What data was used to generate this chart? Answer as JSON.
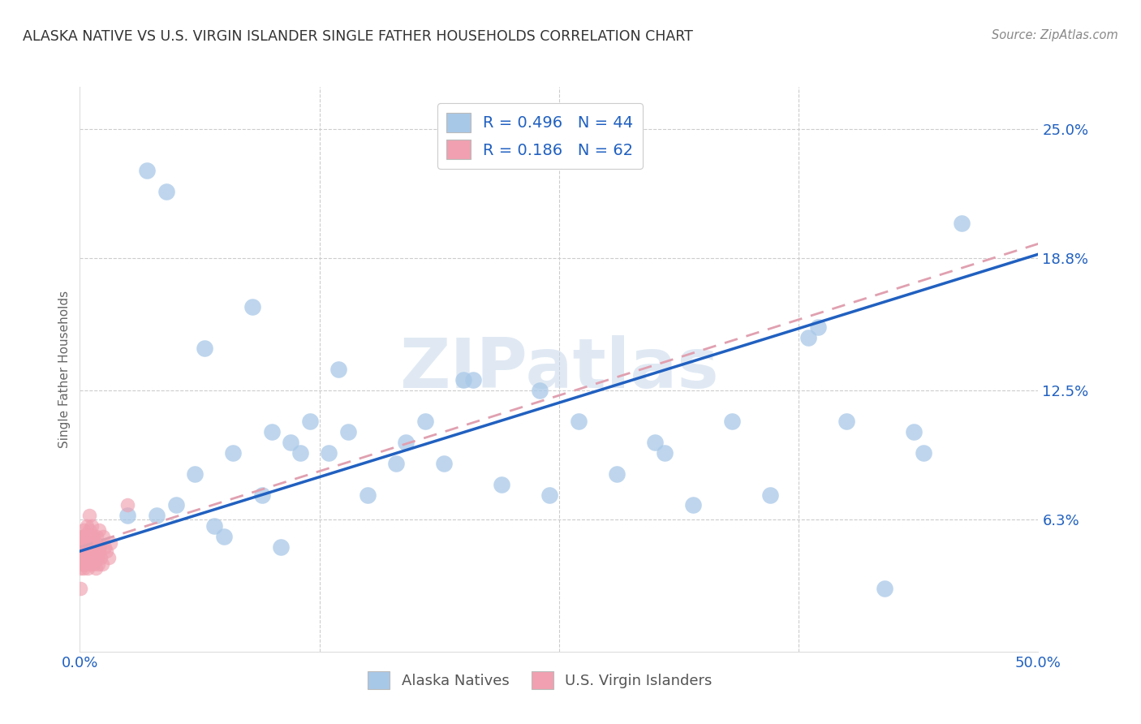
{
  "title": "ALASKA NATIVE VS U.S. VIRGIN ISLANDER SINGLE FATHER HOUSEHOLDS CORRELATION CHART",
  "source": "Source: ZipAtlas.com",
  "ylabel_label": "Single Father Households",
  "ylabel_ticks": [
    "6.3%",
    "12.5%",
    "18.8%",
    "25.0%"
  ],
  "ylabel_values": [
    6.3,
    12.5,
    18.8,
    25.0
  ],
  "xmin": 0.0,
  "xmax": 50.0,
  "ymin": 0.0,
  "ymax": 27.0,
  "color_blue": "#a8c8e8",
  "color_pink": "#f0a0b0",
  "line_blue": "#2060c0",
  "line_pink_dashed": "#e0a0b0",
  "watermark_color": "#c8d8ea",
  "alaska_scatter_x": [
    2.5,
    4.0,
    5.0,
    6.0,
    7.0,
    8.0,
    9.5,
    10.0,
    11.0,
    11.5,
    12.0,
    13.0,
    14.0,
    15.0,
    16.5,
    17.0,
    18.0,
    19.0,
    20.0,
    22.0,
    24.0,
    26.0,
    28.0,
    30.0,
    32.0,
    34.0,
    36.0,
    38.0,
    40.0,
    42.0,
    44.0,
    6.5,
    9.0,
    13.5,
    3.5,
    4.5,
    7.5,
    10.5,
    20.5,
    24.5,
    30.5,
    38.5,
    43.5,
    46.0
  ],
  "alaska_scatter_y": [
    6.5,
    6.5,
    7.0,
    8.5,
    6.0,
    9.5,
    7.5,
    10.5,
    10.0,
    9.5,
    11.0,
    9.5,
    10.5,
    7.5,
    9.0,
    10.0,
    11.0,
    9.0,
    13.0,
    8.0,
    12.5,
    11.0,
    8.5,
    10.0,
    7.0,
    11.0,
    7.5,
    15.0,
    11.0,
    3.0,
    9.5,
    14.5,
    16.5,
    13.5,
    23.0,
    22.0,
    5.5,
    5.0,
    13.0,
    7.5,
    9.5,
    15.5,
    10.5,
    20.5
  ],
  "virgin_scatter_x": [
    0.05,
    0.08,
    0.1,
    0.12,
    0.15,
    0.18,
    0.2,
    0.22,
    0.25,
    0.28,
    0.3,
    0.32,
    0.35,
    0.38,
    0.4,
    0.42,
    0.45,
    0.48,
    0.5,
    0.52,
    0.55,
    0.58,
    0.6,
    0.62,
    0.65,
    0.68,
    0.7,
    0.72,
    0.75,
    0.78,
    0.8,
    0.82,
    0.85,
    0.88,
    0.9,
    0.92,
    0.95,
    0.98,
    1.0,
    1.05,
    1.1,
    1.15,
    1.2,
    1.3,
    1.4,
    1.5,
    1.6,
    0.02,
    0.03,
    0.04,
    0.06,
    0.07,
    0.09,
    0.11,
    0.13,
    0.16,
    0.19,
    0.23,
    0.27,
    0.33,
    2.5,
    0.5
  ],
  "virgin_scatter_y": [
    5.0,
    4.5,
    4.8,
    5.5,
    5.2,
    4.0,
    5.8,
    5.5,
    4.5,
    4.2,
    5.0,
    4.8,
    6.0,
    5.5,
    4.5,
    4.0,
    5.2,
    5.8,
    4.8,
    4.5,
    5.0,
    4.2,
    5.5,
    6.0,
    5.0,
    4.5,
    4.2,
    5.5,
    5.0,
    4.8,
    4.5,
    5.2,
    4.0,
    5.5,
    5.0,
    4.5,
    4.2,
    5.8,
    4.8,
    5.0,
    4.5,
    4.2,
    5.5,
    5.0,
    4.8,
    4.5,
    5.2,
    3.0,
    4.5,
    4.0,
    5.0,
    4.8,
    5.5,
    4.2,
    4.8,
    5.0,
    4.5,
    4.2,
    5.0,
    4.8,
    7.0,
    6.5
  ],
  "blue_line_x0": 0.0,
  "blue_line_x1": 50.0,
  "blue_line_y0": 4.8,
  "blue_line_y1": 19.0,
  "pink_line_x0": 0.0,
  "pink_line_x1": 50.0,
  "pink_line_y0": 5.0,
  "pink_line_y1": 19.5
}
